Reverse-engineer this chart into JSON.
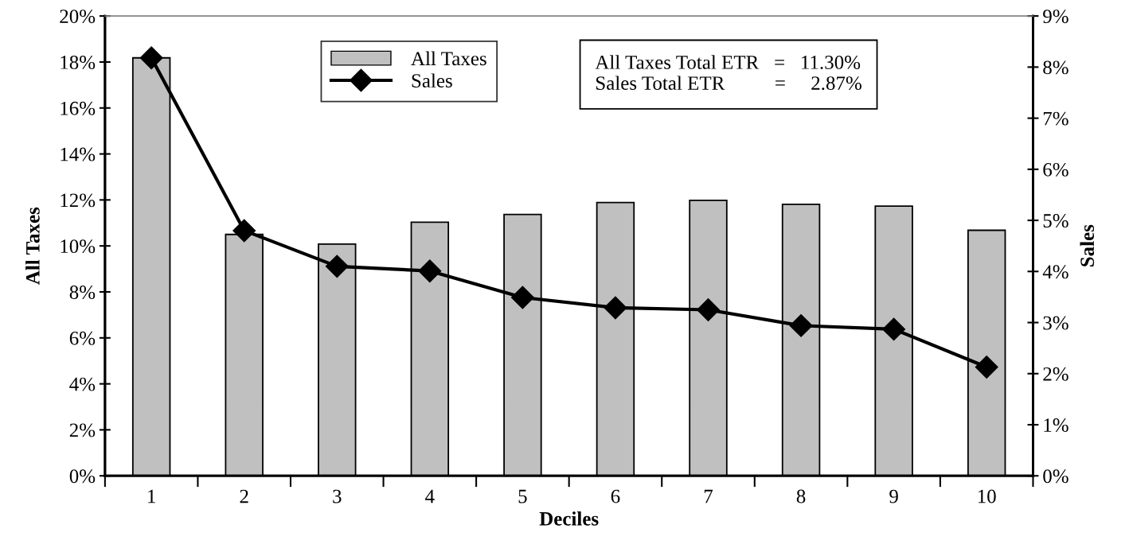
{
  "chart_data": {
    "type": "bar",
    "xlabel": "Deciles",
    "ylabel": "All Taxes",
    "y2label": "Sales",
    "categories": [
      "1",
      "2",
      "3",
      "4",
      "5",
      "6",
      "7",
      "8",
      "9",
      "10"
    ],
    "series": [
      {
        "name": "All Taxes",
        "color": "#c0c0c0",
        "values": [
          18.18,
          10.5,
          10.08,
          11.03,
          11.37,
          11.89,
          11.98,
          11.81,
          11.73,
          10.68
        ]
      },
      {
        "name": "Sales",
        "type": "line",
        "axis": "y2",
        "color": "#000000",
        "marker": "diamond",
        "line_style": "solid",
        "values": [
          8.18,
          4.8,
          4.1,
          4.01,
          3.49,
          3.29,
          3.25,
          2.94,
          2.87,
          2.13
        ]
      }
    ],
    "ylim": [
      0,
      20
    ],
    "yticks": [
      {
        "value": 0,
        "label": "0%"
      },
      {
        "value": 2,
        "label": "2%"
      },
      {
        "value": 4,
        "label": "4%"
      },
      {
        "value": 6,
        "label": "6%"
      },
      {
        "value": 8,
        "label": "8%"
      },
      {
        "value": 10,
        "label": "10%"
      },
      {
        "value": 12,
        "label": "12%"
      },
      {
        "value": 14,
        "label": "14%"
      },
      {
        "value": 16,
        "label": "16%"
      },
      {
        "value": 18,
        "label": "18%"
      },
      {
        "value": 20,
        "label": "20%"
      }
    ],
    "y2lim": [
      0,
      9
    ],
    "y2ticks": [
      {
        "value": 0,
        "label": "0%"
      },
      {
        "value": 1,
        "label": "1%"
      },
      {
        "value": 2,
        "label": "2%"
      },
      {
        "value": 3,
        "label": "3%"
      },
      {
        "value": 4,
        "label": "4%"
      },
      {
        "value": 5,
        "label": "5%"
      },
      {
        "value": 6,
        "label": "6%"
      },
      {
        "value": 7,
        "label": "7%"
      },
      {
        "value": 8,
        "label": "8%"
      },
      {
        "value": 9,
        "label": "9%"
      }
    ],
    "annotations": [
      "All Taxes Total ETR   =   11.30%",
      "Sales Total ETR          =     2.87%"
    ],
    "legend": "top",
    "grid": false
  }
}
